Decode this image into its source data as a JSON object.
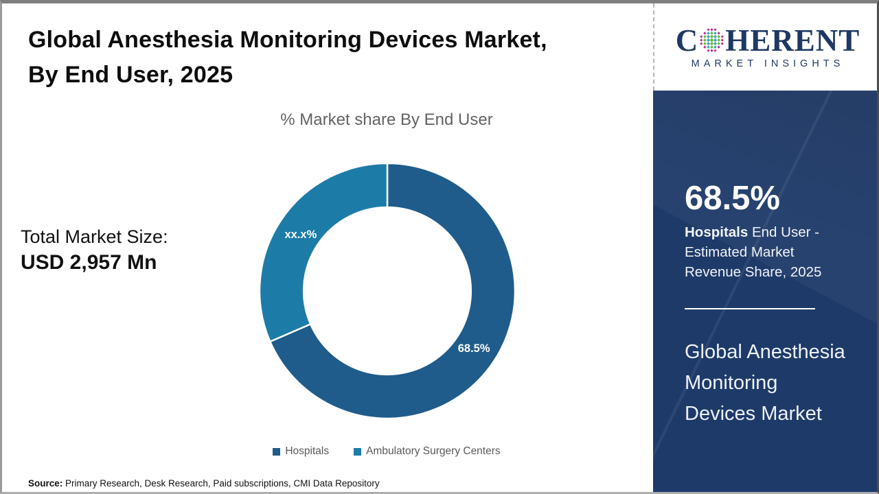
{
  "header": {
    "title_line1": "Global Anesthesia Monitoring Devices Market,",
    "title_line2": "By End User, 2025"
  },
  "logo": {
    "word_start": "C",
    "word_end": "HERENT",
    "tagline": "MARKET INSIGHTS",
    "navy": "#1F3864",
    "globe_colors": {
      "rim": "#C02590",
      "teal": "#2BA9C1",
      "green": "#6FB52C"
    }
  },
  "chart_data": {
    "type": "pie",
    "subtype": "donut",
    "title": "% Market share By End User",
    "start_angle_deg": 0,
    "inner_radius_ratio": 0.655,
    "legend_position": "bottom",
    "slices": [
      {
        "label": "Hospitals",
        "value": 68.5,
        "display_label": "68.5%",
        "color": "#1F5C8C"
      },
      {
        "label": "Ambulatory Surgery Centers",
        "value": 31.5,
        "display_label": "xx.x%",
        "color": "#1D7CA7"
      }
    ]
  },
  "market_size": {
    "label": "Total Market Size:",
    "value": "USD 2,957 Mn"
  },
  "side_panel": {
    "bg": "#1E3A69",
    "stat_value": "68.5%",
    "stat_bold": "Hospitals",
    "stat_rest": "  End User - Estimated Market Revenue Share, 2025",
    "title": "Global Anesthesia Monitoring Devices Market"
  },
  "source": {
    "label": "Source:",
    "text": " Primary Research, Desk Research, Paid subscriptions, CMI Data Repository"
  }
}
